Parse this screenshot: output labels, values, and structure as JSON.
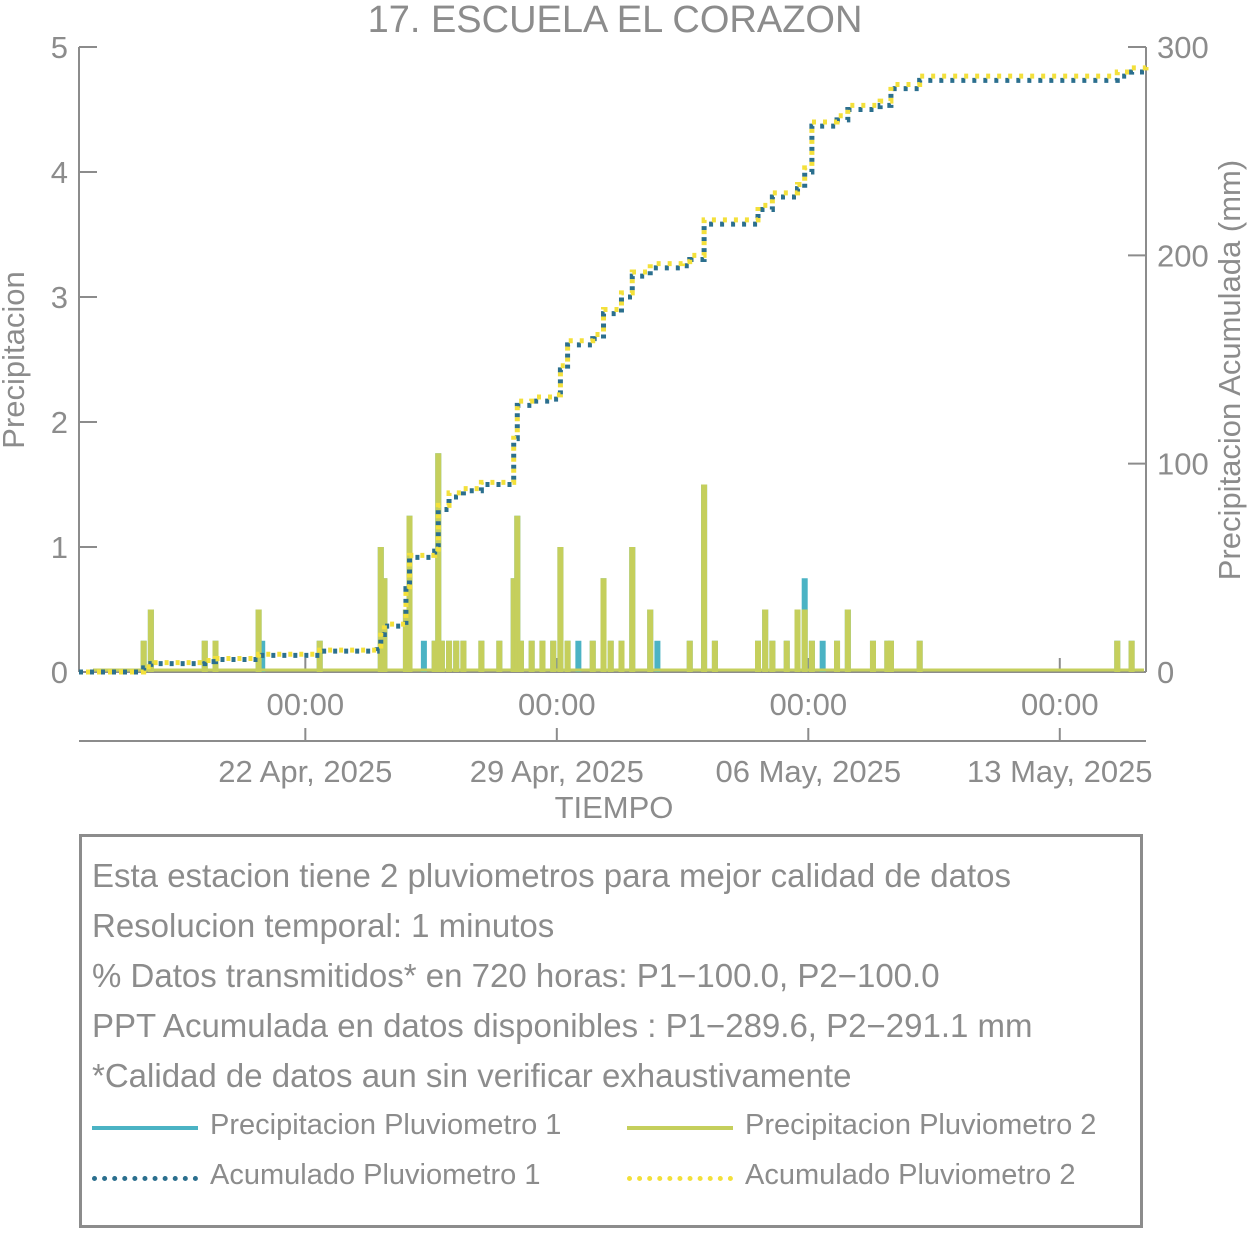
{
  "chart_data": {
    "type": "bar",
    "title": "17. ESCUELA EL CORAZON",
    "xlabel": "TIEMPO",
    "ylabel_left": "Precipitacion",
    "ylabel_right": "Precipitacion Acumulada (mm)",
    "ylim_left": [
      0,
      5
    ],
    "ylim_right": [
      0,
      300
    ],
    "yticks_left": [
      "0",
      "1",
      "2",
      "3",
      "4",
      "5"
    ],
    "yticks_right": [
      "0",
      "100",
      "200",
      "300"
    ],
    "x_tick_times": [
      "00:00",
      "00:00",
      "00:00",
      "00:00"
    ],
    "x_tick_dates": [
      "22 Apr, 2025",
      "29 Apr, 2025",
      "06 May, 2025",
      "13 May, 2025"
    ],
    "x_range_days": [
      -6.3,
      23.4
    ],
    "x_tick_days": [
      0,
      7,
      14,
      21
    ],
    "grid": false,
    "colors": {
      "p1": "#4bb3c4",
      "p2": "#c5cf5c",
      "acum1": "#2b6f8e",
      "acum2": "#f3e03b",
      "axis": "#8c8c8c"
    },
    "series": [
      {
        "name": "Precipitacion Pluviometro 1",
        "kind": "bar",
        "points": [
          [
            -4.5,
            0.25
          ],
          [
            -4.3,
            0.5
          ],
          [
            -2.8,
            0.25
          ],
          [
            -2.5,
            0.25
          ],
          [
            -1.3,
            0.5
          ],
          [
            -1.2,
            0.25
          ],
          [
            0.4,
            0.25
          ],
          [
            2.1,
            1.0
          ],
          [
            2.2,
            0.75
          ],
          [
            2.8,
            0.5
          ],
          [
            2.9,
            1.25
          ],
          [
            3.3,
            0.25
          ],
          [
            3.6,
            0.25
          ],
          [
            3.7,
            1.75
          ],
          [
            3.8,
            0.25
          ],
          [
            4.0,
            0.25
          ],
          [
            4.2,
            0.25
          ],
          [
            4.4,
            0.25
          ],
          [
            4.9,
            0.25
          ],
          [
            5.4,
            0.25
          ],
          [
            5.8,
            0.75
          ],
          [
            5.9,
            1.25
          ],
          [
            6.0,
            0.25
          ],
          [
            6.3,
            0.25
          ],
          [
            6.6,
            0.25
          ],
          [
            6.9,
            0.25
          ],
          [
            7.1,
            1.0
          ],
          [
            7.3,
            0.25
          ],
          [
            7.6,
            0.25
          ],
          [
            8.0,
            0.25
          ],
          [
            8.3,
            0.75
          ],
          [
            8.5,
            0.25
          ],
          [
            8.8,
            0.25
          ],
          [
            9.1,
            1.0
          ],
          [
            9.6,
            0.5
          ],
          [
            9.8,
            0.25
          ],
          [
            10.7,
            0.25
          ],
          [
            11.1,
            1.5
          ],
          [
            11.4,
            0.25
          ],
          [
            12.6,
            0.25
          ],
          [
            12.8,
            0.5
          ],
          [
            13.0,
            0.25
          ],
          [
            13.4,
            0.25
          ],
          [
            13.7,
            0.5
          ],
          [
            13.9,
            0.75
          ],
          [
            14.1,
            0.25
          ],
          [
            14.4,
            0.25
          ],
          [
            14.8,
            0.25
          ],
          [
            15.1,
            0.5
          ],
          [
            15.8,
            0.25
          ],
          [
            16.2,
            0.25
          ],
          [
            16.3,
            0.25
          ],
          [
            17.1,
            0.25
          ],
          [
            22.6,
            0.25
          ],
          [
            23.0,
            0.25
          ]
        ]
      },
      {
        "name": "Precipitacion Pluviometro 2",
        "kind": "bar",
        "points": [
          [
            -4.5,
            0.25
          ],
          [
            -4.3,
            0.5
          ],
          [
            -2.8,
            0.25
          ],
          [
            -2.5,
            0.25
          ],
          [
            -1.3,
            0.5
          ],
          [
            0.4,
            0.25
          ],
          [
            2.1,
            1.0
          ],
          [
            2.2,
            0.75
          ],
          [
            2.8,
            0.5
          ],
          [
            2.9,
            1.25
          ],
          [
            3.6,
            0.25
          ],
          [
            3.7,
            1.75
          ],
          [
            3.8,
            0.25
          ],
          [
            4.0,
            0.25
          ],
          [
            4.2,
            0.25
          ],
          [
            4.4,
            0.25
          ],
          [
            4.9,
            0.25
          ],
          [
            5.4,
            0.25
          ],
          [
            5.8,
            0.75
          ],
          [
            5.9,
            1.25
          ],
          [
            6.0,
            0.25
          ],
          [
            6.3,
            0.25
          ],
          [
            6.6,
            0.25
          ],
          [
            6.9,
            0.25
          ],
          [
            7.1,
            1.0
          ],
          [
            7.3,
            0.25
          ],
          [
            8.0,
            0.25
          ],
          [
            8.3,
            0.75
          ],
          [
            8.5,
            0.25
          ],
          [
            8.8,
            0.25
          ],
          [
            9.1,
            1.0
          ],
          [
            9.6,
            0.5
          ],
          [
            10.7,
            0.25
          ],
          [
            11.1,
            1.5
          ],
          [
            11.4,
            0.25
          ],
          [
            12.6,
            0.25
          ],
          [
            12.8,
            0.5
          ],
          [
            13.0,
            0.25
          ],
          [
            13.4,
            0.25
          ],
          [
            13.7,
            0.5
          ],
          [
            13.9,
            0.5
          ],
          [
            14.1,
            0.25
          ],
          [
            14.8,
            0.25
          ],
          [
            15.1,
            0.5
          ],
          [
            15.8,
            0.25
          ],
          [
            16.2,
            0.25
          ],
          [
            16.3,
            0.25
          ],
          [
            17.1,
            0.25
          ],
          [
            22.6,
            0.25
          ],
          [
            23.0,
            0.25
          ]
        ]
      },
      {
        "name": "Acumulado Pluviometro 1",
        "kind": "cumulative",
        "points": [
          [
            -6.3,
            0
          ],
          [
            -4.7,
            0
          ],
          [
            -4.5,
            2
          ],
          [
            -4.3,
            4
          ],
          [
            -2.8,
            5
          ],
          [
            -2.5,
            6
          ],
          [
            -1.3,
            8
          ],
          [
            0.4,
            10
          ],
          [
            2.0,
            12
          ],
          [
            2.1,
            18
          ],
          [
            2.2,
            22
          ],
          [
            2.8,
            40
          ],
          [
            2.9,
            55
          ],
          [
            3.6,
            58
          ],
          [
            3.7,
            78
          ],
          [
            4.0,
            84
          ],
          [
            4.4,
            87
          ],
          [
            4.9,
            90
          ],
          [
            5.7,
            90
          ],
          [
            5.8,
            112
          ],
          [
            5.9,
            128
          ],
          [
            6.3,
            130
          ],
          [
            6.9,
            131
          ],
          [
            7.1,
            145
          ],
          [
            7.3,
            157
          ],
          [
            8.0,
            160
          ],
          [
            8.3,
            172
          ],
          [
            8.8,
            180
          ],
          [
            9.1,
            190
          ],
          [
            9.6,
            194
          ],
          [
            10.5,
            195
          ],
          [
            10.7,
            198
          ],
          [
            11.1,
            215
          ],
          [
            12.4,
            215
          ],
          [
            12.6,
            222
          ],
          [
            13.0,
            228
          ],
          [
            13.7,
            232
          ],
          [
            13.9,
            240
          ],
          [
            14.1,
            262
          ],
          [
            14.8,
            265
          ],
          [
            15.1,
            270
          ],
          [
            16.0,
            272
          ],
          [
            16.3,
            280
          ],
          [
            17.1,
            284
          ],
          [
            22.5,
            284
          ],
          [
            22.6,
            286
          ],
          [
            23.0,
            288
          ],
          [
            23.4,
            289.6
          ]
        ]
      },
      {
        "name": "Acumulado Pluviometro 2",
        "kind": "cumulative",
        "points": [
          [
            -6.3,
            0
          ],
          [
            -4.7,
            0
          ],
          [
            -4.5,
            2.5
          ],
          [
            -4.3,
            4.5
          ],
          [
            -2.8,
            5.5
          ],
          [
            -2.5,
            6.5
          ],
          [
            -1.3,
            8.5
          ],
          [
            0.4,
            10.5
          ],
          [
            2.0,
            12.5
          ],
          [
            2.1,
            19
          ],
          [
            2.2,
            23
          ],
          [
            2.8,
            41
          ],
          [
            2.9,
            56
          ],
          [
            3.6,
            59
          ],
          [
            3.7,
            80
          ],
          [
            4.0,
            86
          ],
          [
            4.4,
            88
          ],
          [
            4.9,
            91
          ],
          [
            5.7,
            91
          ],
          [
            5.8,
            114
          ],
          [
            5.9,
            130
          ],
          [
            6.3,
            132
          ],
          [
            6.9,
            133
          ],
          [
            7.1,
            147
          ],
          [
            7.3,
            159
          ],
          [
            8.0,
            162
          ],
          [
            8.3,
            174
          ],
          [
            8.8,
            182
          ],
          [
            9.1,
            192
          ],
          [
            9.6,
            196
          ],
          [
            10.5,
            197
          ],
          [
            10.7,
            200
          ],
          [
            11.1,
            217
          ],
          [
            12.4,
            217
          ],
          [
            12.6,
            224
          ],
          [
            13.0,
            230
          ],
          [
            13.7,
            234
          ],
          [
            13.9,
            242
          ],
          [
            14.1,
            264
          ],
          [
            14.8,
            267
          ],
          [
            15.1,
            272
          ],
          [
            16.0,
            274
          ],
          [
            16.3,
            282
          ],
          [
            17.1,
            286
          ],
          [
            22.5,
            286
          ],
          [
            22.6,
            288
          ],
          [
            23.0,
            290
          ],
          [
            23.4,
            291.1
          ]
        ]
      }
    ],
    "info_lines": [
      "Esta estacion tiene 2 pluviometros para mejor calidad de datos",
      "Resolucion temporal: 1 minutos",
      "% Datos transmitidos* en 720 horas: P1−100.0, P2−100.0",
      "PPT Acumulada en datos disponibles : P1−289.6, P2−291.1 mm",
      "*Calidad de datos aun sin verificar exhaustivamente"
    ],
    "legend": [
      {
        "label": "Precipitacion Pluviometro 1",
        "color": "#4bb3c4",
        "style": "solid"
      },
      {
        "label": "Precipitacion Pluviometro 2",
        "color": "#c5cf5c",
        "style": "solid"
      },
      {
        "label": "Acumulado Pluviometro 1",
        "color": "#2b6f8e",
        "style": "dotted"
      },
      {
        "label": "Acumulado Pluviometro 2",
        "color": "#f3e03b",
        "style": "dotted"
      }
    ]
  }
}
